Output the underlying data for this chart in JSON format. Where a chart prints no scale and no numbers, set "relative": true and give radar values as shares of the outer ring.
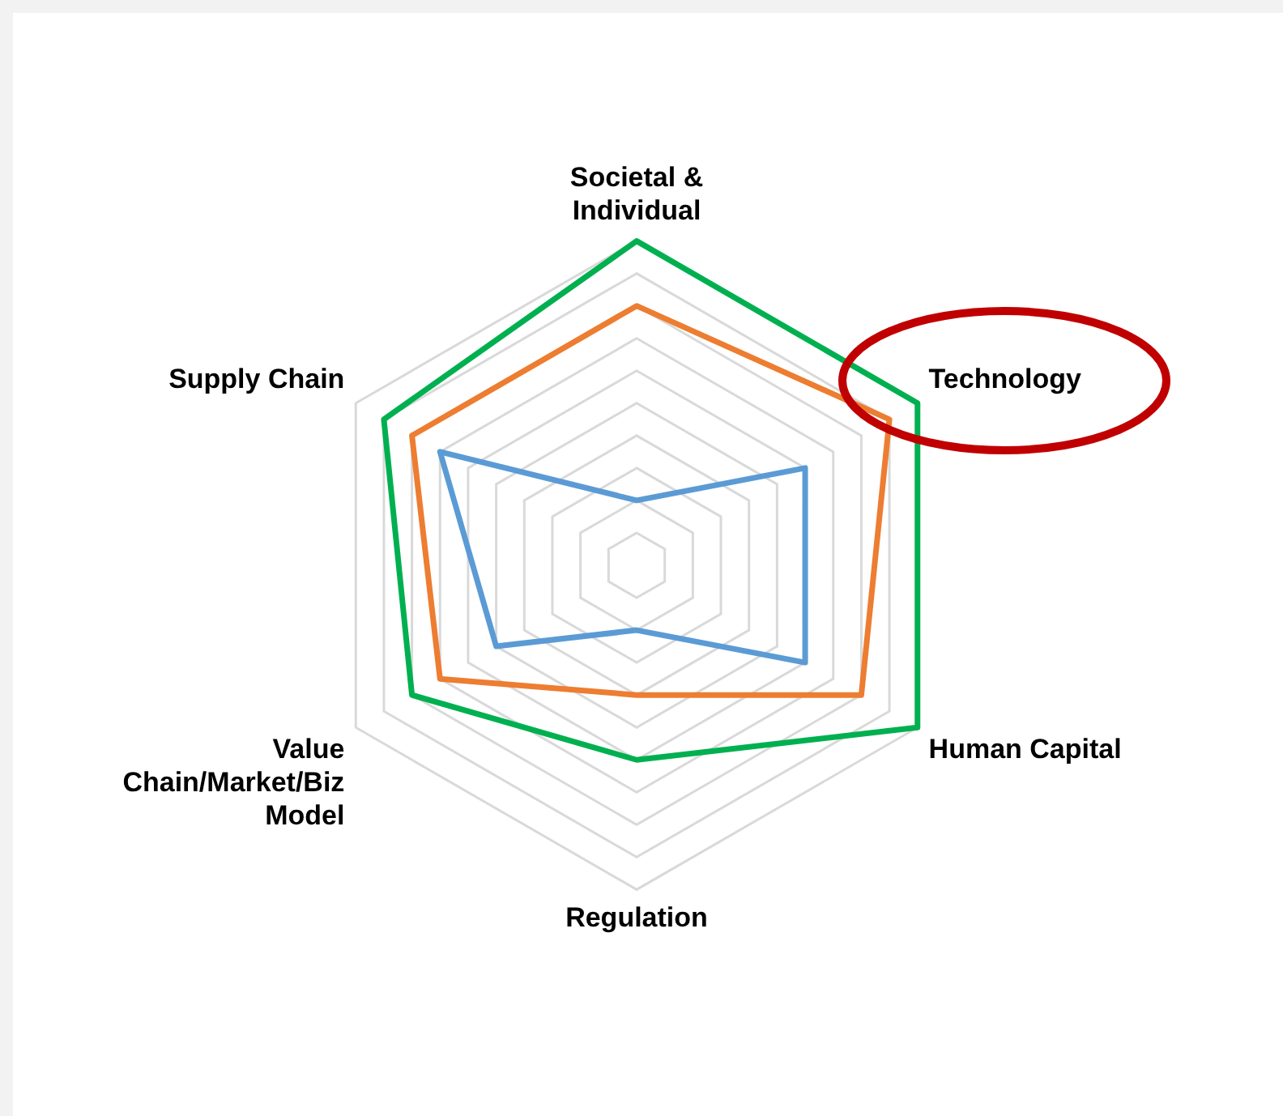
{
  "chart_data": {
    "type": "radar",
    "relative": true,
    "categories": [
      "Societal & Individual",
      "Technology",
      "Human Capital",
      "Regulation",
      "Value Chain/Market/Biz Model",
      "Supply Chain"
    ],
    "series": [
      {
        "color": "#5b9bd5",
        "values": [
          0.2,
          0.6,
          0.6,
          0.2,
          0.5,
          0.7
        ]
      },
      {
        "color": "#ed7d31",
        "values": [
          0.8,
          0.9,
          0.8,
          0.4,
          0.7,
          0.8
        ]
      },
      {
        "color": "#00b050",
        "values": [
          1.0,
          1.0,
          1.0,
          0.6,
          0.8,
          0.9
        ]
      }
    ],
    "legend": false,
    "marker": "none"
  }
}
